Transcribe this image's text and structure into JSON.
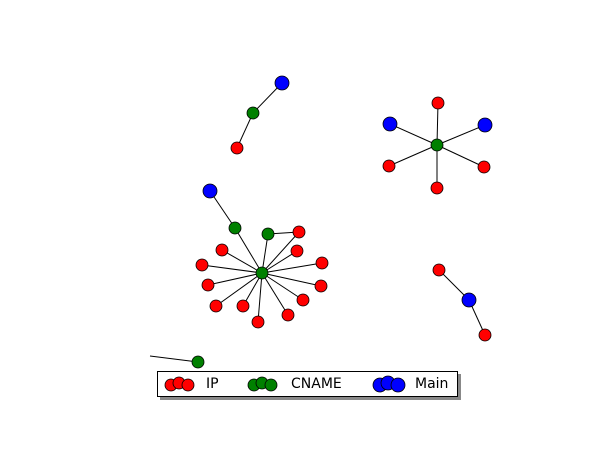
{
  "legend": {
    "entries": [
      {
        "label": "IP",
        "color": "#ff0000"
      },
      {
        "label": "CNAME",
        "color": "#008000"
      },
      {
        "label": "Main",
        "color": "#0000ff"
      }
    ]
  },
  "graph": {
    "node_colors": {
      "ip": "#ff0000",
      "cname": "#008000",
      "main": "#0000ff"
    },
    "edge_color": "#000000",
    "clusters": [
      {
        "id": "top-pair",
        "hub": "cname",
        "main_nodes": 1,
        "ip_nodes": 1
      },
      {
        "id": "star-right",
        "hub": "cname",
        "main_nodes": 2,
        "ip_nodes": 4
      },
      {
        "id": "big-star",
        "hub": "cname",
        "main_nodes": 1,
        "cname_nodes": 2,
        "ip_nodes": 14
      },
      {
        "id": "right-chain",
        "hub": "main",
        "ip_nodes": 2
      },
      {
        "id": "lone-cname",
        "hub": "cname",
        "dangling_edges": 1
      }
    ]
  }
}
